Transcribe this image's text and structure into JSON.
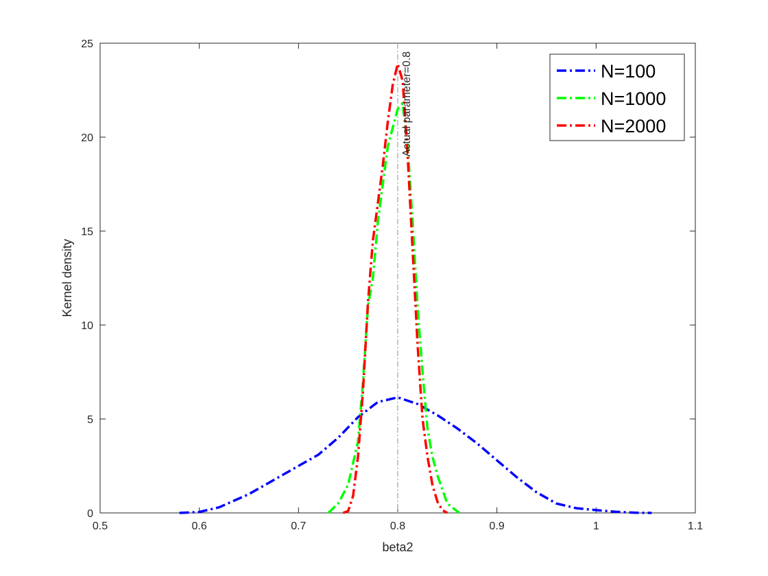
{
  "chart_data": {
    "type": "line",
    "title": "",
    "xlabel": "beta2",
    "ylabel": "Kernel density",
    "xlim": [
      0.5,
      1.1
    ],
    "ylim": [
      0,
      25
    ],
    "x_ticks": [
      "0.5",
      "0.6",
      "0.7",
      "0.8",
      "0.9",
      "1",
      "1.1"
    ],
    "y_ticks": [
      "0",
      "5",
      "10",
      "15",
      "20",
      "25"
    ],
    "grid": false,
    "legend_position": "top-right",
    "reference_line": {
      "x": 0.8,
      "label": "Actual parameter=0.8",
      "color": "#b4b4b4"
    },
    "series": [
      {
        "name": "N=100",
        "color": "#0000ff",
        "x": [
          0.58,
          0.6,
          0.62,
          0.65,
          0.68,
          0.7,
          0.72,
          0.74,
          0.76,
          0.78,
          0.8,
          0.82,
          0.84,
          0.86,
          0.88,
          0.9,
          0.92,
          0.94,
          0.96,
          0.98,
          1.0,
          1.02,
          1.04,
          1.056
        ],
        "y": [
          0.0,
          0.05,
          0.3,
          1.0,
          1.9,
          2.5,
          3.1,
          4.0,
          5.1,
          5.9,
          6.15,
          5.8,
          5.2,
          4.5,
          3.7,
          2.8,
          1.9,
          1.1,
          0.5,
          0.25,
          0.15,
          0.06,
          0.01,
          0.0
        ]
      },
      {
        "name": "N=1000",
        "color": "#00ff00",
        "x": [
          0.73,
          0.74,
          0.75,
          0.76,
          0.765,
          0.77,
          0.775,
          0.78,
          0.79,
          0.8,
          0.805,
          0.81,
          0.815,
          0.82,
          0.825,
          0.83,
          0.835,
          0.84,
          0.85,
          0.862
        ],
        "y": [
          0.0,
          0.5,
          1.5,
          3.8,
          7.0,
          11.0,
          12.5,
          15.5,
          19.5,
          21.5,
          21.8,
          19.5,
          15.5,
          11.0,
          7.5,
          4.5,
          3.0,
          2.0,
          0.5,
          0.0
        ]
      },
      {
        "name": "N=2000",
        "color": "#ff0000",
        "x": [
          0.745,
          0.75,
          0.755,
          0.76,
          0.765,
          0.77,
          0.775,
          0.78,
          0.785,
          0.79,
          0.795,
          0.8,
          0.805,
          0.81,
          0.815,
          0.82,
          0.825,
          0.83,
          0.835,
          0.84,
          0.845,
          0.85
        ],
        "y": [
          0.0,
          0.1,
          0.9,
          3.0,
          6.5,
          11.2,
          14.5,
          16.5,
          18.5,
          20.8,
          22.8,
          23.9,
          23.0,
          19.0,
          14.0,
          9.0,
          5.0,
          3.0,
          1.5,
          0.6,
          0.15,
          0.0
        ]
      }
    ]
  }
}
